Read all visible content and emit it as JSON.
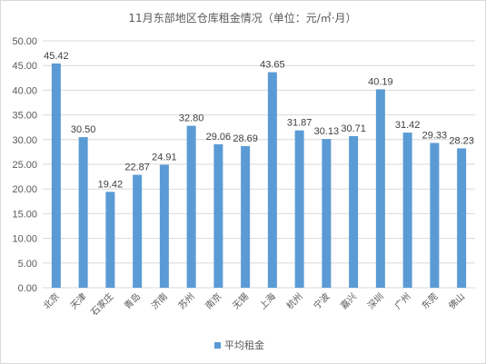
{
  "chart_data": {
    "type": "bar",
    "title": "11月东部地区仓库租金情况（单位：元/㎡·月）",
    "categories": [
      "北京",
      "天津",
      "石家庄",
      "青岛",
      "济南",
      "苏州",
      "南京",
      "无锡",
      "上海",
      "杭州",
      "宁波",
      "嘉兴",
      "深圳",
      "广州",
      "东莞",
      "佛山"
    ],
    "series": [
      {
        "name": "平均租金",
        "values": [
          45.42,
          30.5,
          19.42,
          22.87,
          24.91,
          32.8,
          29.06,
          28.69,
          43.65,
          31.87,
          30.13,
          30.71,
          40.19,
          31.42,
          29.33,
          28.23
        ],
        "labels": [
          "45.42",
          "30.50",
          "19.42",
          "22.87",
          "24.91",
          "32.80",
          "29.06",
          "28.69",
          "43.65",
          "31.87",
          "30.13",
          "30.71",
          "40.19",
          "31.42",
          "29.33",
          "28.23"
        ]
      }
    ],
    "y_ticks": [
      "0.00",
      "5.00",
      "10.00",
      "15.00",
      "20.00",
      "25.00",
      "30.00",
      "35.00",
      "40.00",
      "45.00",
      "50.00"
    ],
    "ylim": [
      0,
      50
    ],
    "grid": true,
    "legend_position": "bottom",
    "colors": {
      "bar": "#5b9bd5",
      "grid": "#d9d9d9",
      "text": "#595959"
    }
  }
}
